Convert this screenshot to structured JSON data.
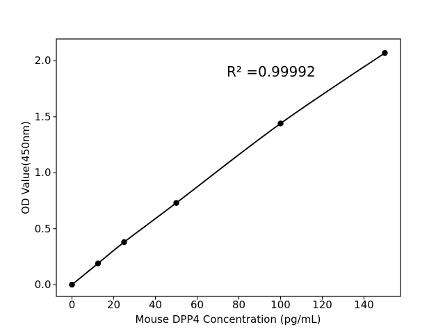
{
  "chart_data": {
    "type": "line",
    "title": "",
    "xlabel": "Mouse DPP4 Concentration (pg/mL)",
    "ylabel": "OD Value(450nm)",
    "annotation": "R² =0.99992",
    "x": [
      0,
      12.5,
      25,
      50,
      100,
      150
    ],
    "y": [
      0.0,
      0.19,
      0.38,
      0.73,
      1.44,
      2.07
    ],
    "xticks": [
      0,
      20,
      40,
      60,
      80,
      100,
      120,
      140
    ],
    "xtick_labels": [
      "0",
      "20",
      "40",
      "60",
      "80",
      "100",
      "120",
      "140"
    ],
    "yticks": [
      0.0,
      0.5,
      1.0,
      1.5,
      2.0
    ],
    "ytick_labels": [
      "0.0",
      "0.5",
      "1.0",
      "1.5",
      "2.0"
    ],
    "xlim": [
      -7.5,
      157.5
    ],
    "ylim": [
      -0.105,
      2.195
    ],
    "grid": false,
    "legend": null,
    "line_color": "#000000",
    "marker_color": "#000000",
    "axes_color": "#000000",
    "background_color": "#ffffff"
  }
}
